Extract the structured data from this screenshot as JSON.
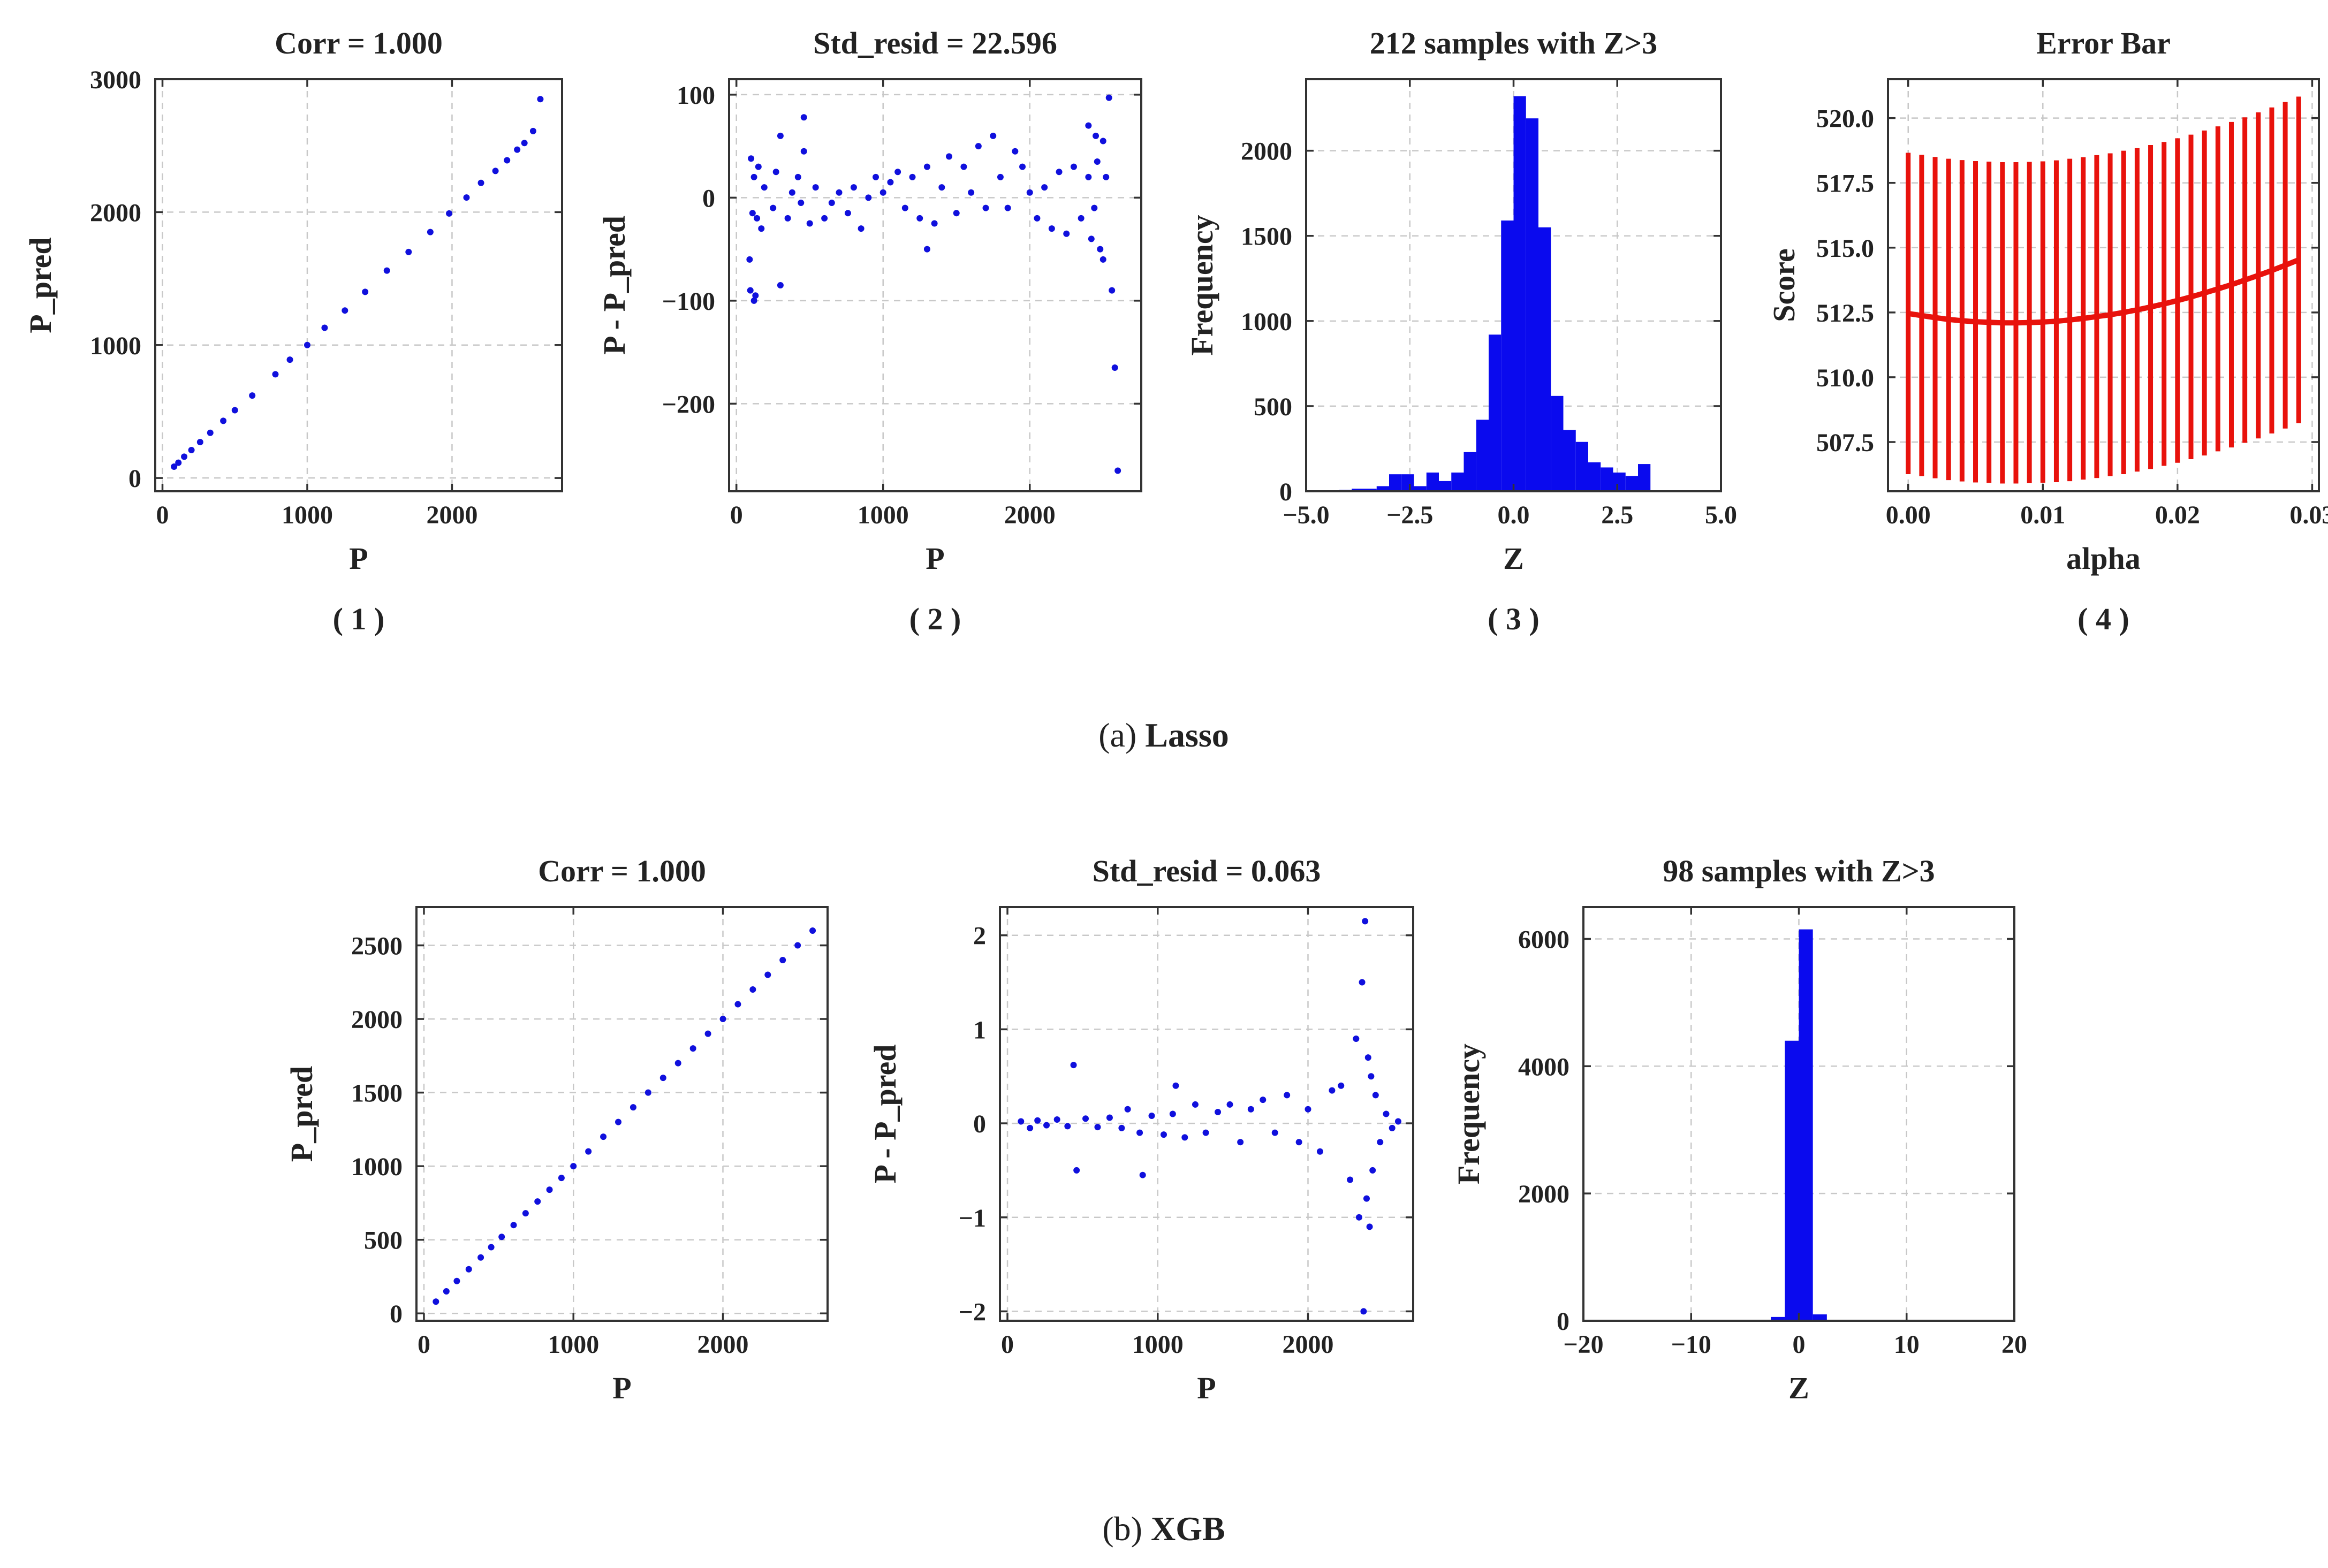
{
  "colors": {
    "points": "#1010dd",
    "bars": "#0a0aee",
    "errorbar": "#e8120c",
    "grid": "#c8c8c8",
    "frame": "#333333"
  },
  "sections": [
    {
      "caption_prefix": "(a)",
      "caption_name": "Lasso"
    },
    {
      "caption_prefix": "(b)",
      "caption_name": "XGB"
    }
  ],
  "chart_data": [
    {
      "id": "a1",
      "section": "a",
      "type": "scatter",
      "panel_label": "( 1 )",
      "title": "Corr = 1.000",
      "xlabel": "P",
      "ylabel": "P_pred",
      "xlim": [
        -50,
        2760
      ],
      "ylim": [
        -100,
        3000
      ],
      "xticks": [
        0,
        1000,
        2000
      ],
      "yticks": [
        0,
        1000,
        2000,
        3000
      ],
      "grid": true,
      "description_of_points": "points lie along y = x with slight scatter",
      "x": [
        80,
        110,
        150,
        200,
        260,
        330,
        420,
        500,
        620,
        780,
        880,
        1000,
        1120,
        1260,
        1400,
        1550,
        1700,
        1850,
        1980,
        2100,
        2200,
        2300,
        2380,
        2450,
        2500,
        2560,
        2610
      ],
      "y": [
        85,
        115,
        160,
        210,
        270,
        340,
        430,
        510,
        620,
        780,
        890,
        1000,
        1130,
        1260,
        1400,
        1560,
        1700,
        1850,
        1990,
        2110,
        2220,
        2310,
        2390,
        2470,
        2520,
        2610,
        2850
      ]
    },
    {
      "id": "a2",
      "section": "a",
      "type": "scatter",
      "panel_label": "( 2 )",
      "title": "Std_resid = 22.596",
      "xlabel": "P",
      "ylabel": "P - P_pred",
      "xlim": [
        -50,
        2760
      ],
      "ylim": [
        -285,
        115
      ],
      "xticks": [
        0,
        1000,
        2000
      ],
      "yticks": [
        -200,
        -100,
        0,
        100
      ],
      "grid": true,
      "x": [
        90,
        95,
        100,
        110,
        120,
        130,
        140,
        150,
        170,
        190,
        250,
        270,
        300,
        350,
        380,
        420,
        440,
        460,
        500,
        540,
        600,
        650,
        700,
        760,
        800,
        850,
        900,
        950,
        1000,
        1050,
        1100,
        1150,
        1200,
        1250,
        1300,
        1350,
        1400,
        1450,
        1500,
        1550,
        1600,
        1650,
        1700,
        1750,
        1800,
        1850,
        1900,
        1950,
        2000,
        2050,
        2100,
        2150,
        2200,
        2250,
        2300,
        2350,
        2400,
        2420,
        2440,
        2460,
        2480,
        2500,
        2520,
        2540,
        2560,
        2580,
        2600,
        120,
        300,
        460,
        1300,
        2400,
        2450,
        2500
      ],
      "y": [
        -60,
        -90,
        38,
        -15,
        20,
        -95,
        -20,
        30,
        -30,
        10,
        -10,
        25,
        -85,
        -20,
        5,
        20,
        -5,
        78,
        -25,
        10,
        -20,
        -5,
        5,
        -15,
        10,
        -30,
        0,
        20,
        5,
        15,
        25,
        -10,
        20,
        -20,
        30,
        -25,
        10,
        40,
        -15,
        30,
        5,
        50,
        -10,
        60,
        20,
        -10,
        45,
        30,
        5,
        -20,
        10,
        -30,
        25,
        -35,
        30,
        -20,
        20,
        -40,
        -10,
        35,
        -50,
        -60,
        20,
        97,
        -90,
        -165,
        -265,
        -100,
        60,
        45,
        -50,
        70,
        60,
        55
      ]
    },
    {
      "id": "a3",
      "section": "a",
      "type": "bar",
      "panel_label": "( 3 )",
      "title": "212 samples with Z>3",
      "xlabel": "Z",
      "ylabel": "Frequency",
      "xlim": [
        -5,
        5
      ],
      "ylim": [
        0,
        2420
      ],
      "xticks": [
        -5.0,
        -2.5,
        0.0,
        2.5,
        5.0
      ],
      "xtick_labels": [
        "−5.0",
        "−2.5",
        "0.0",
        "2.5",
        "5.0"
      ],
      "yticks": [
        0,
        500,
        1000,
        1500,
        2000
      ],
      "grid": true,
      "bin_edges": [
        -4.2,
        -3.9,
        -3.6,
        -3.3,
        -3.0,
        -2.7,
        -2.4,
        -2.1,
        -1.8,
        -1.5,
        -1.2,
        -0.9,
        -0.6,
        -0.3,
        0.0,
        0.3,
        0.6,
        0.9,
        1.2,
        1.5,
        1.8,
        2.1,
        2.4,
        2.7,
        3.0,
        3.3
      ],
      "counts": [
        8,
        15,
        15,
        30,
        100,
        100,
        30,
        110,
        60,
        110,
        230,
        420,
        920,
        1590,
        2320,
        2190,
        1550,
        560,
        360,
        290,
        170,
        140,
        110,
        90,
        160
      ]
    },
    {
      "id": "a4",
      "section": "a",
      "type": "line",
      "panel_label": "( 4 )",
      "title": "Error Bar",
      "xlabel": "alpha",
      "ylabel": "Score",
      "xlim": [
        -0.0015,
        0.0305
      ],
      "ylim": [
        505.6,
        521.5
      ],
      "xticks": [
        0.0,
        0.01,
        0.02,
        0.03
      ],
      "xtick_labels": [
        "0.00",
        "0.01",
        "0.02",
        "0.03"
      ],
      "yticks": [
        507.5,
        510.0,
        512.5,
        515.0,
        517.5,
        520.0
      ],
      "grid": true,
      "x": [
        0.0,
        0.001,
        0.002,
        0.003,
        0.004,
        0.005,
        0.006,
        0.007,
        0.008,
        0.009,
        0.01,
        0.011,
        0.012,
        0.013,
        0.014,
        0.015,
        0.016,
        0.017,
        0.018,
        0.019,
        0.02,
        0.021,
        0.022,
        0.023,
        0.024,
        0.025,
        0.026,
        0.027,
        0.028,
        0.029
      ],
      "y": [
        512.46,
        512.38,
        512.3,
        512.23,
        512.18,
        512.14,
        512.12,
        512.1,
        512.1,
        512.11,
        512.13,
        512.16,
        512.21,
        512.27,
        512.34,
        512.41,
        512.5,
        512.6,
        512.71,
        512.83,
        512.96,
        513.1,
        513.25,
        513.41,
        513.57,
        513.75,
        513.93,
        514.12,
        514.32,
        514.53
      ],
      "err": [
        6.2,
        6.2,
        6.2,
        6.2,
        6.2,
        6.2,
        6.2,
        6.2,
        6.2,
        6.2,
        6.2,
        6.21,
        6.22,
        6.22,
        6.23,
        6.23,
        6.24,
        6.24,
        6.25,
        6.25,
        6.26,
        6.26,
        6.27,
        6.27,
        6.28,
        6.28,
        6.29,
        6.29,
        6.3,
        6.3
      ]
    },
    {
      "id": "b1",
      "section": "b",
      "type": "scatter",
      "panel_label": "",
      "title": "Corr = 1.000",
      "xlabel": "P",
      "ylabel": "P_pred",
      "xlim": [
        -50,
        2700
      ],
      "ylim": [
        -50,
        2760
      ],
      "xticks": [
        0,
        1000,
        2000
      ],
      "yticks": [
        0,
        500,
        1000,
        1500,
        2000,
        2500
      ],
      "grid": true,
      "x": [
        80,
        150,
        220,
        300,
        380,
        450,
        520,
        600,
        680,
        760,
        840,
        920,
        1000,
        1100,
        1200,
        1300,
        1400,
        1500,
        1600,
        1700,
        1800,
        1900,
        2000,
        2100,
        2200,
        2300,
        2400,
        2500,
        2600
      ],
      "y": [
        80,
        150,
        220,
        300,
        380,
        450,
        520,
        600,
        680,
        760,
        840,
        920,
        1000,
        1100,
        1200,
        1300,
        1400,
        1500,
        1600,
        1700,
        1800,
        1900,
        2000,
        2100,
        2200,
        2300,
        2400,
        2500,
        2600
      ]
    },
    {
      "id": "b2",
      "section": "b",
      "type": "scatter",
      "panel_label": "",
      "title": "Std_resid = 0.063",
      "xlabel": "P",
      "ylabel": "P - P_pred",
      "xlim": [
        -50,
        2700
      ],
      "ylim": [
        -2.1,
        2.3
      ],
      "xticks": [
        0,
        1000,
        2000
      ],
      "yticks": [
        -2,
        -1,
        0,
        1,
        2
      ],
      "grid": true,
      "x": [
        90,
        150,
        200,
        260,
        330,
        400,
        440,
        460,
        520,
        600,
        680,
        760,
        800,
        880,
        900,
        960,
        1040,
        1100,
        1120,
        1180,
        1250,
        1320,
        1400,
        1480,
        1550,
        1620,
        1700,
        1780,
        1860,
        1940,
        2000,
        2080,
        2160,
        2220,
        2280,
        2320,
        2340,
        2360,
        2370,
        2380,
        2390,
        2400,
        2410,
        2420,
        2430,
        2450,
        2480,
        2520,
        2560,
        2600
      ],
      "y": [
        0.02,
        -0.05,
        0.03,
        -0.02,
        0.04,
        -0.03,
        0.62,
        -0.5,
        0.05,
        -0.04,
        0.06,
        -0.05,
        0.15,
        -0.1,
        -0.55,
        0.08,
        -0.12,
        0.1,
        0.4,
        -0.15,
        0.2,
        -0.1,
        0.12,
        0.2,
        -0.2,
        0.15,
        0.25,
        -0.1,
        0.3,
        -0.2,
        0.15,
        -0.3,
        0.35,
        0.4,
        -0.6,
        0.9,
        -1.0,
        1.5,
        -2.0,
        2.15,
        -0.8,
        0.7,
        -1.1,
        0.5,
        -0.5,
        0.3,
        -0.2,
        0.1,
        -0.05,
        0.02
      ]
    },
    {
      "id": "b3",
      "section": "b",
      "type": "bar",
      "panel_label": "",
      "title": "98 samples with Z>3",
      "xlabel": "Z",
      "ylabel": "Frequency",
      "xlim": [
        -20,
        20
      ],
      "ylim": [
        0,
        6500
      ],
      "xticks": [
        -20,
        -10,
        0,
        10,
        20
      ],
      "xtick_labels": [
        "−20",
        "−10",
        "0",
        "10",
        "20"
      ],
      "yticks": [
        0,
        2000,
        4000,
        6000
      ],
      "grid": true,
      "bin_edges": [
        -2.6,
        -1.3,
        0.0,
        1.3,
        2.6
      ],
      "counts": [
        60,
        4400,
        6150,
        100
      ]
    }
  ]
}
